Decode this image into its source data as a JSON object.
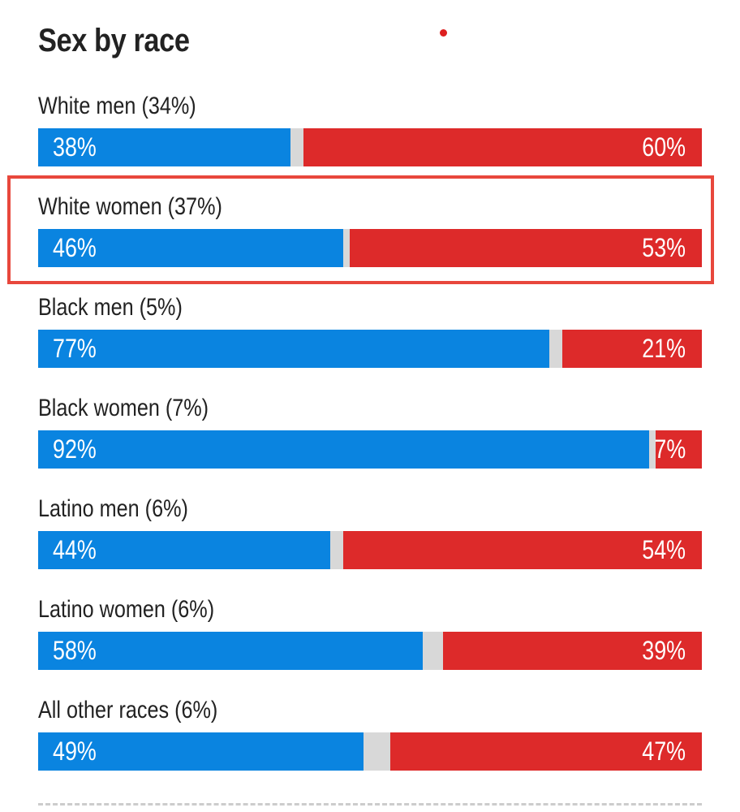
{
  "title": "Sex by race",
  "colors": {
    "democrat": "#0a84e0",
    "republican": "#dd2a2a",
    "other": "#d8d8d8",
    "highlight": "#e8473c",
    "live_dot": "#dd1f1f"
  },
  "chart_data": {
    "type": "bar",
    "stacked": true,
    "orientation": "horizontal",
    "title": "Sex by race",
    "highlighted_category": "White women (37%)",
    "categories": [
      "White men (34%)",
      "White women (37%)",
      "Black men (5%)",
      "Black women (7%)",
      "Latino men (6%)",
      "Latino women (6%)",
      "All other races (6%)"
    ],
    "series": [
      {
        "values": [
          38,
          46,
          77,
          92,
          44,
          58,
          49
        ],
        "labels": [
          "38%",
          "46%",
          "77%",
          "92%",
          "44%",
          "58%",
          "49%"
        ],
        "color": "#0a84e0"
      },
      {
        "values": [
          2,
          1,
          2,
          1,
          2,
          3,
          4
        ],
        "color": "#d8d8d8"
      },
      {
        "values": [
          60,
          53,
          21,
          7,
          54,
          39,
          47
        ],
        "labels": [
          "60%",
          "53%",
          "21%",
          "7%",
          "54%",
          "39%",
          "47%"
        ],
        "color": "#dd2a2a"
      }
    ],
    "xlim": [
      0,
      100
    ]
  }
}
